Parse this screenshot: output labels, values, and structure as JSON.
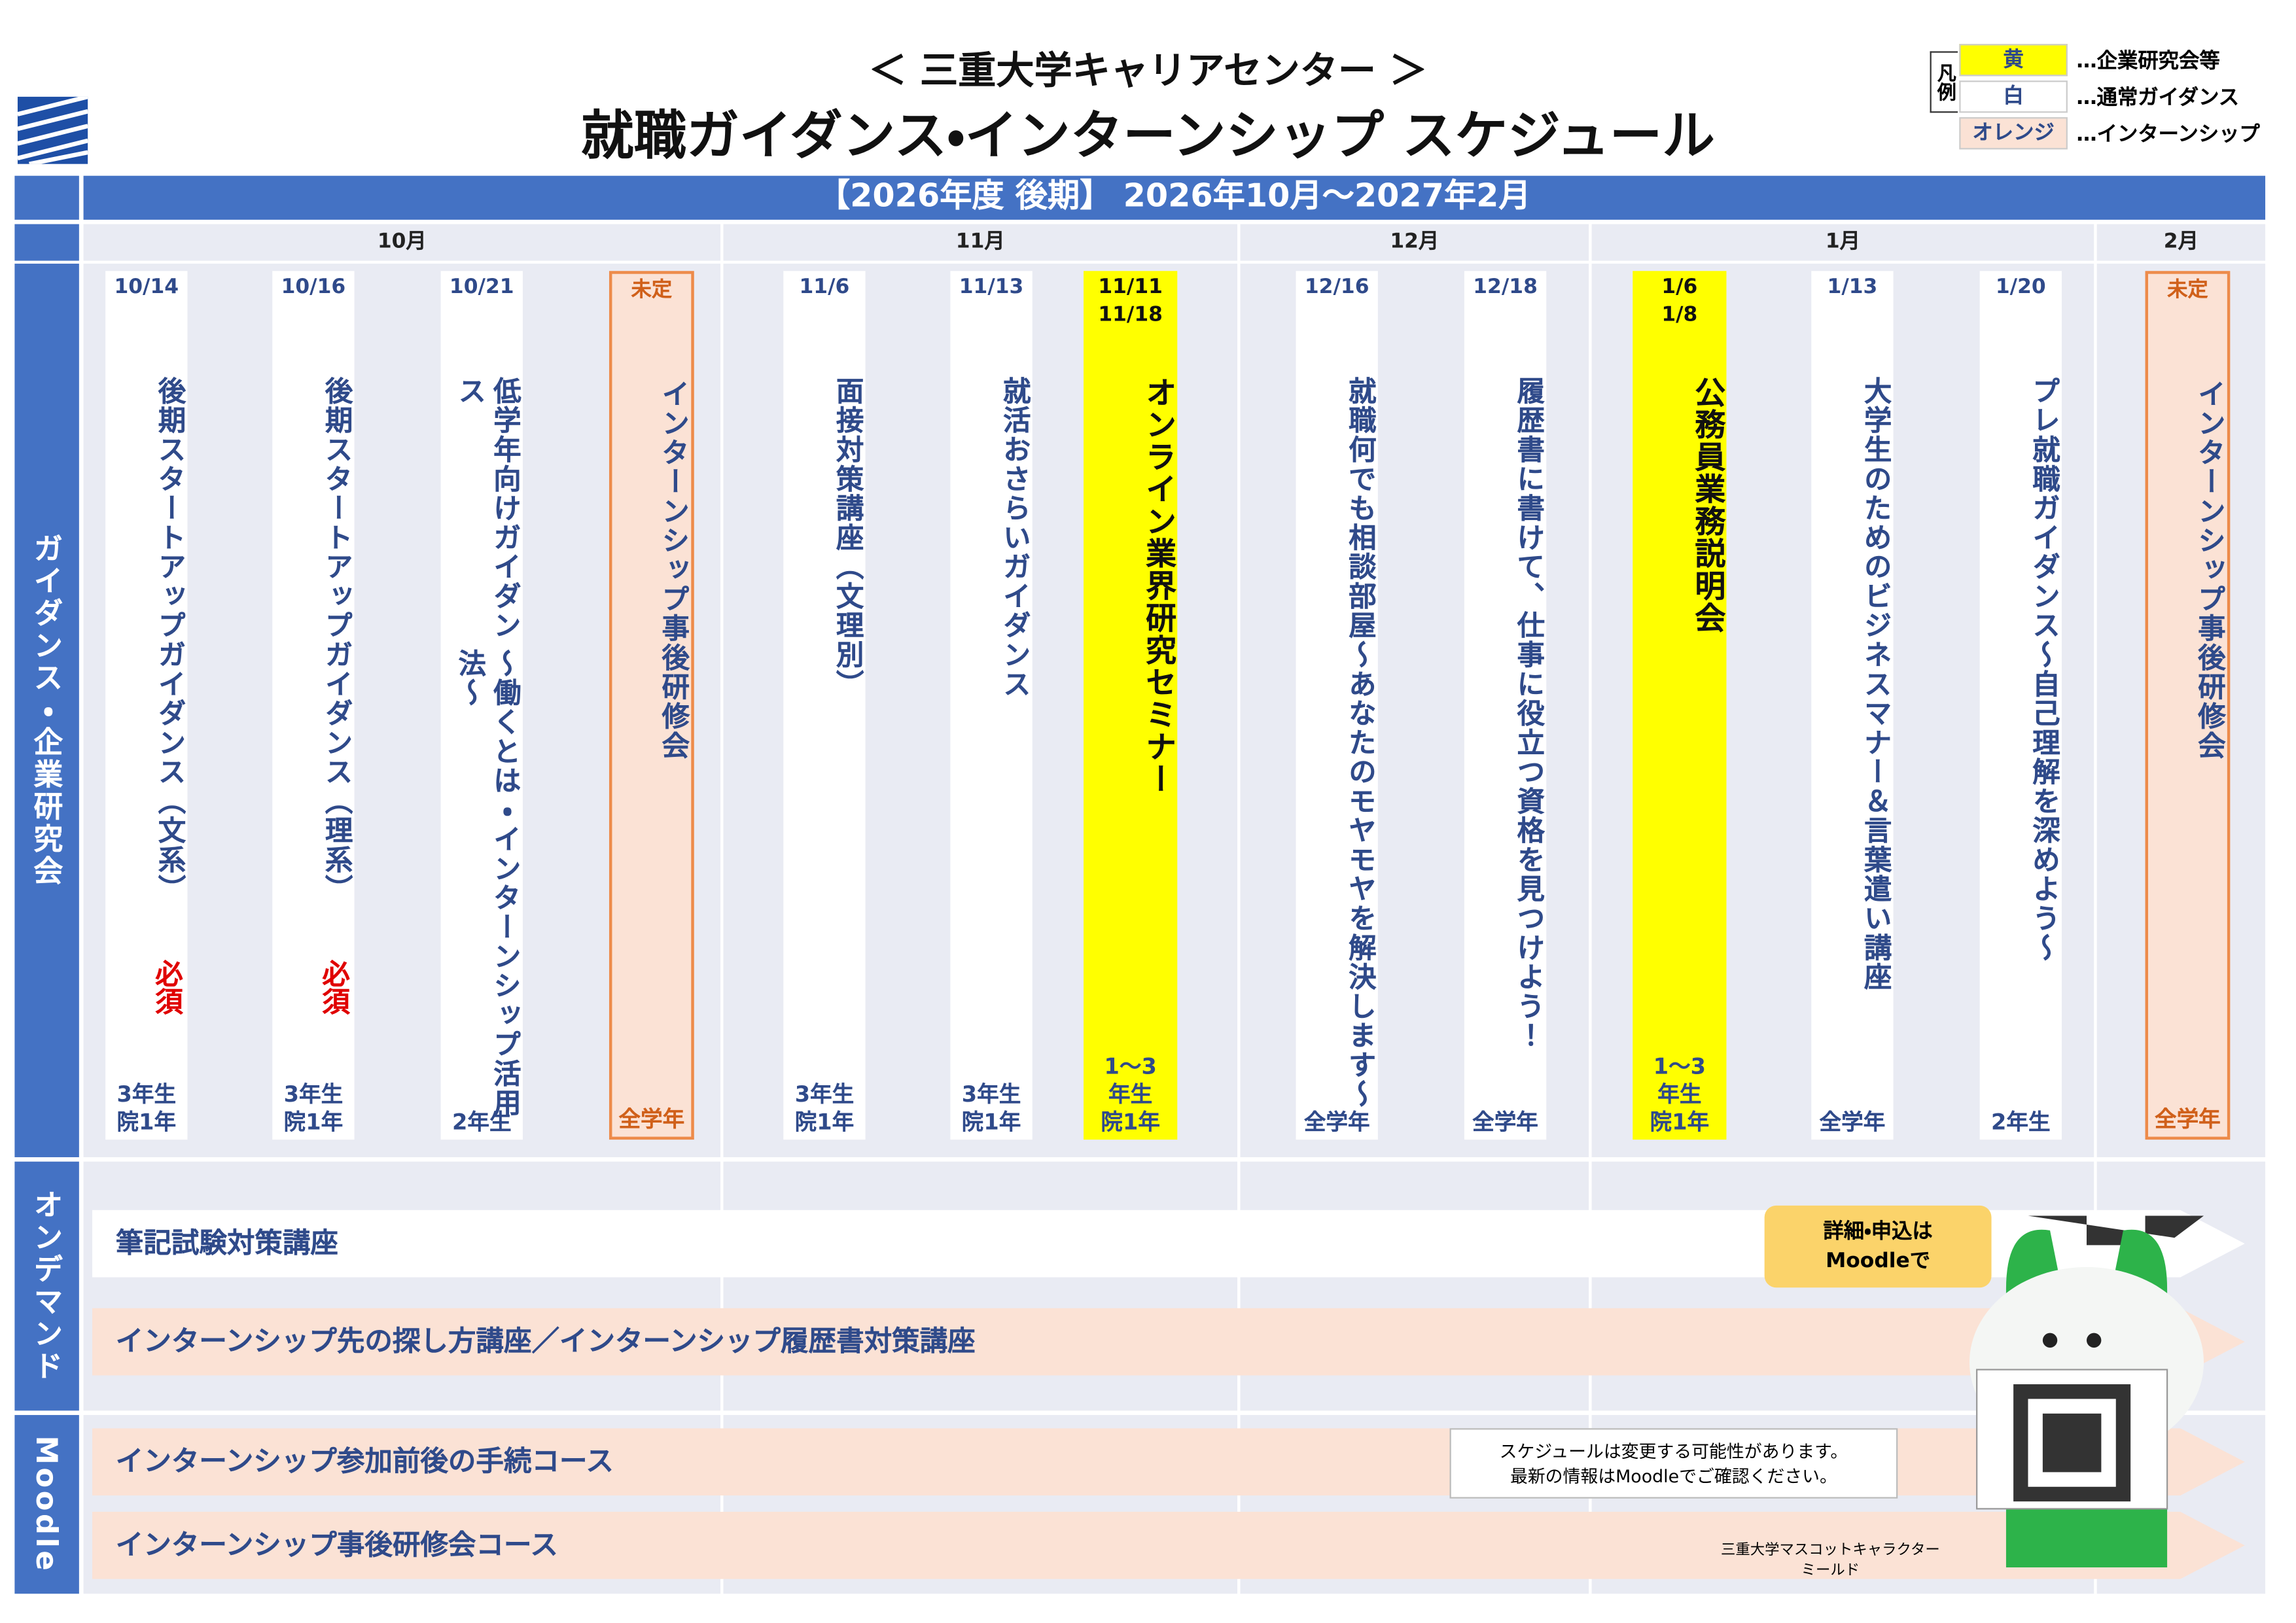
{
  "header": {
    "subtitle": "＜ 三重大学キャリアセンター ＞",
    "title": "就職ガイダンス・インターンシップ スケジュール"
  },
  "legend": {
    "label": "凡例",
    "items": [
      {
        "swatch": "黄",
        "desc": "…企業研究会等",
        "color": "#ffff00"
      },
      {
        "swatch": "白",
        "desc": "…通常ガイダンス",
        "color": "#ffffff"
      },
      {
        "swatch": "オレンジ",
        "desc": "…インターンシップ",
        "color": "#fbe2d5"
      }
    ]
  },
  "period": "【2026年度 後期】 2026年10月～2027年2月",
  "months": [
    "10月",
    "11月",
    "12月",
    "1月",
    "2月"
  ],
  "sections": [
    "ガイダンス・企業研究会",
    "オンデマンド",
    "Moodle"
  ],
  "events": [
    {
      "dates": [
        "10/14"
      ],
      "title": [
        "後期スタートアップガイダンス（文系）"
      ],
      "required": "必須",
      "target": [
        "3年生",
        "院1年"
      ],
      "color": "#ffffff"
    },
    {
      "dates": [
        "10/16"
      ],
      "title": [
        "後期スタートアップガイダンス（理系）"
      ],
      "required": "必須",
      "target": [
        "3年生",
        "院1年"
      ],
      "color": "#ffffff"
    },
    {
      "dates": [
        "10/21"
      ],
      "title": [
        "低学年向けガイダンス",
        "～働くとは・インターンシップ活用法～"
      ],
      "target": [
        "2年生"
      ],
      "color": "#ffffff"
    },
    {
      "dates": [
        "未定"
      ],
      "title": [
        "インターンシップ事後研修会"
      ],
      "target": [
        "全学年"
      ],
      "color": "#fbe2d5"
    },
    {
      "dates": [
        "11/6"
      ],
      "title": [
        "面接対策講座（文理別）"
      ],
      "target": [
        "3年生",
        "院1年"
      ],
      "color": "#ffffff"
    },
    {
      "dates": [
        "11/13"
      ],
      "title": [
        "就活おさらいガイダンス"
      ],
      "target": [
        "3年生",
        "院1年"
      ],
      "color": "#ffffff"
    },
    {
      "dates": [
        "11/11",
        "11/18"
      ],
      "title": [
        "オンライン業界研究セミナー"
      ],
      "target": [
        "1～3",
        "年生",
        "院1年"
      ],
      "color": "#ffff00"
    },
    {
      "dates": [
        "12/16"
      ],
      "title": [
        "就職何でも相談部屋",
        "～あなたのモヤモヤを解決します～"
      ],
      "target": [
        "全学年"
      ],
      "color": "#ffffff"
    },
    {
      "dates": [
        "12/18"
      ],
      "title": [
        "履歴書に書けて、仕事に役立つ資格を見つけよう！"
      ],
      "target": [
        "全学年"
      ],
      "color": "#ffffff"
    },
    {
      "dates": [
        "1/6",
        "1/8"
      ],
      "title": [
        "公務員業務説明会"
      ],
      "target": [
        "1～3",
        "年生",
        "院1年"
      ],
      "color": "#ffff00"
    },
    {
      "dates": [
        "1/13"
      ],
      "title": [
        "大学生のための",
        "ビジネスマナー＆言葉遣い講座"
      ],
      "target": [
        "全学年"
      ],
      "color": "#ffffff"
    },
    {
      "dates": [
        "1/20"
      ],
      "title": [
        "プレ就職ガイダンス",
        "～自己理解を深めよう～"
      ],
      "target": [
        "2年生"
      ],
      "color": "#ffffff"
    },
    {
      "dates": [
        "未定"
      ],
      "title": [
        "インターンシップ事後研修会"
      ],
      "target": [
        "全学年"
      ],
      "color": "#fbe2d5"
    }
  ],
  "ondemand": [
    "筆記試験対策講座",
    "インターンシップ先の探し方講座／インターンシップ履歴書対策講座"
  ],
  "moodle": [
    "インターンシップ参加前後の手続コース",
    "インターンシップ事後研修会コース"
  ],
  "callout": [
    "詳細・申込は",
    "Moodleで"
  ],
  "notice": [
    "スケジュールは変更する可能性があります。",
    "最新の情報はMoodleでご確認ください。"
  ],
  "mascot_caption": [
    "三重大学マスコットキャラクター",
    "ミールド"
  ]
}
